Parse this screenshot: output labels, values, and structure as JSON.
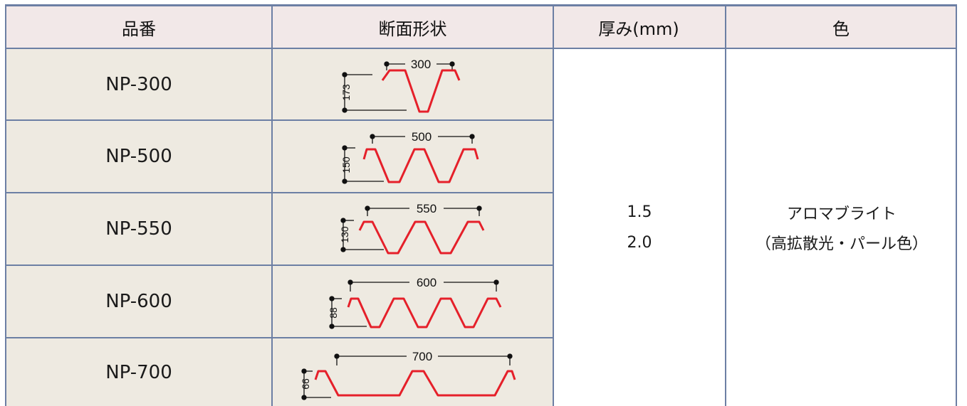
{
  "headers": [
    "品番",
    "断面形状",
    "厚み(mm)",
    "色"
  ],
  "rows": [
    {
      "model": "NP-300",
      "width": "300",
      "height": "173"
    },
    {
      "model": "NP-500",
      "width": "500",
      "height": "150"
    },
    {
      "model": "NP-550",
      "width": "550",
      "height": "130"
    },
    {
      "model": "NP-600",
      "width": "600",
      "height": "88"
    },
    {
      "model": "NP-700",
      "width": "700",
      "height": "66"
    }
  ],
  "thickness": [
    "1.5",
    "2.0"
  ],
  "color": {
    "line1": "アロマブライト",
    "line2": "（高拡散光・パール色）"
  },
  "colors": {
    "profile": "#e5202a",
    "dimension": "#111111",
    "border": "#6c7fa4",
    "header_bg": "#f2e8e8",
    "row_bg": "#eeeae1"
  }
}
